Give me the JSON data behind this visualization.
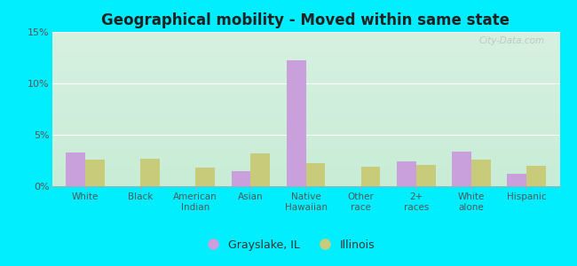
{
  "title": "Geographical mobility - Moved within same state",
  "categories": [
    "White",
    "Black",
    "American\nIndian",
    "Asian",
    "Native\nHawaiian",
    "Other\nrace",
    "2+\nraces",
    "White\nalone",
    "Hispanic"
  ],
  "grayslake_values": [
    3.3,
    0.0,
    0.0,
    1.5,
    12.2,
    0.0,
    2.4,
    3.4,
    1.2
  ],
  "illinois_values": [
    2.6,
    2.7,
    1.8,
    3.2,
    2.2,
    1.9,
    2.1,
    2.6,
    2.0
  ],
  "grayslake_color": "#c9a0dc",
  "illinois_color": "#c8cc7a",
  "ylim": [
    0,
    15
  ],
  "yticks": [
    0,
    5,
    10,
    15
  ],
  "ytick_labels": [
    "0%",
    "5%",
    "10%",
    "15%"
  ],
  "bar_width": 0.35,
  "bg_top": "#d6f0e0",
  "bg_bottom": "#c8ecd6",
  "outer_background": "#00eeff",
  "legend_grayslake": "Grayslake, IL",
  "legend_illinois": "Illinois",
  "watermark": "City-Data.com",
  "title_fontsize": 12,
  "tick_fontsize": 7.5,
  "legend_fontsize": 9
}
